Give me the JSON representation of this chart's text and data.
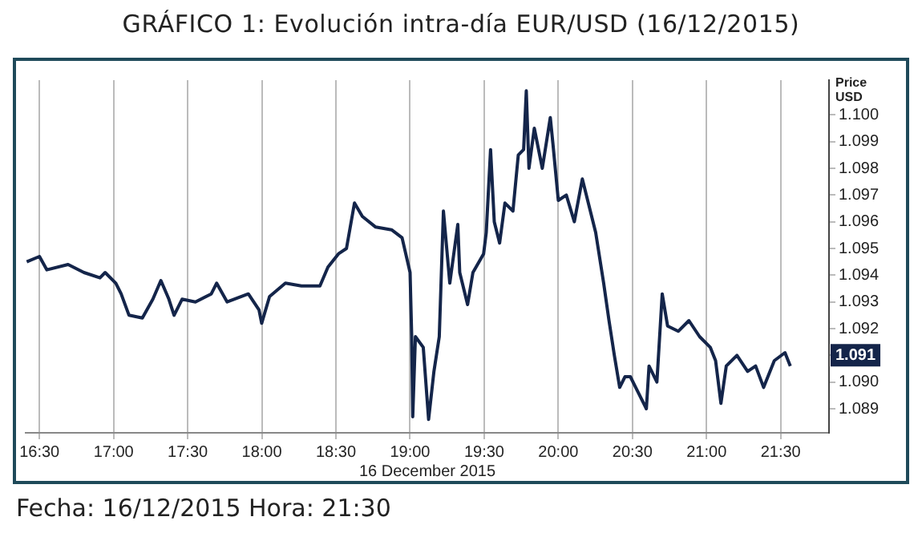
{
  "chart_data": {
    "type": "line",
    "title": "GRÁFICO 1: Evolución intra-día EUR/USD (16/12/2015)",
    "xlabel": "16 December 2015",
    "ylabel": "Price USD",
    "x": [
      16.414,
      16.5,
      16.55,
      16.693,
      16.8,
      16.908,
      16.943,
      17.015,
      17.051,
      17.104,
      17.194,
      17.265,
      17.319,
      17.373,
      17.408,
      17.462,
      17.552,
      17.659,
      17.695,
      17.766,
      17.909,
      17.981,
      17.999,
      18.052,
      18.159,
      18.267,
      18.392,
      18.446,
      18.517,
      18.571,
      18.625,
      18.678,
      18.768,
      18.875,
      18.946,
      19.0,
      19.011,
      19.018,
      19.036,
      19.089,
      19.125,
      19.161,
      19.197,
      19.225,
      19.268,
      19.322,
      19.335,
      19.388,
      19.424,
      19.496,
      19.514,
      19.543,
      19.568,
      19.604,
      19.64,
      19.694,
      19.73,
      19.766,
      19.784,
      19.802,
      19.838,
      19.892,
      19.946,
      19.964,
      20.0,
      20.054,
      20.108,
      20.162,
      20.198,
      20.252,
      20.306,
      20.342,
      20.378,
      20.414,
      20.45,
      20.486,
      20.522,
      20.594,
      20.612,
      20.665,
      20.701,
      20.737,
      20.809,
      20.881,
      20.953,
      21.025,
      21.061,
      21.097,
      21.133,
      21.205,
      21.277,
      21.331,
      21.385,
      21.457,
      21.529,
      21.565
    ],
    "series": [
      {
        "color": "#14254a",
        "values": [
          1.0945,
          1.0947,
          1.0942,
          1.0944,
          1.0941,
          1.0939,
          1.0941,
          1.0937,
          1.0933,
          1.0925,
          1.0924,
          1.0931,
          1.0938,
          1.0931,
          1.0925,
          1.0931,
          1.093,
          1.0933,
          1.0937,
          1.093,
          1.0933,
          1.0927,
          1.0922,
          1.0932,
          1.0937,
          1.0936,
          1.0936,
          1.0943,
          1.0948,
          1.095,
          1.0967,
          1.0962,
          1.0958,
          1.0957,
          1.0954,
          1.0941,
          1.0917,
          1.0887,
          1.0917,
          1.0913,
          1.0886,
          1.0904,
          1.0917,
          1.0964,
          1.0937,
          1.0959,
          1.0941,
          1.0929,
          1.0941,
          1.0948,
          1.0956,
          1.0987,
          1.096,
          1.0952,
          1.0967,
          1.0964,
          1.0985,
          1.0987,
          1.1009,
          1.098,
          1.0995,
          1.098,
          1.0999,
          1.0989,
          1.0968,
          1.097,
          1.096,
          1.0976,
          1.0968,
          1.0956,
          1.0937,
          1.0923,
          1.091,
          1.0898,
          1.0902,
          1.0902,
          1.0898,
          1.089,
          1.0906,
          1.09,
          1.0933,
          1.0921,
          1.0919,
          1.0923,
          1.0917,
          1.0913,
          1.0908,
          1.0892,
          1.0906,
          1.091,
          1.0904,
          1.0906,
          1.0898,
          1.0908,
          1.0911,
          1.0906
        ]
      }
    ],
    "xlim": [
      16.407,
      21.826
    ],
    "xticks": [
      {
        "value": 16.5,
        "label": "16:30"
      },
      {
        "value": 17,
        "label": "17:00"
      },
      {
        "value": 17.5,
        "label": "17:30"
      },
      {
        "value": 18,
        "label": "18:00"
      },
      {
        "value": 18.5,
        "label": "18:30"
      },
      {
        "value": 19,
        "label": "19:00"
      },
      {
        "value": 19.5,
        "label": "19:30"
      },
      {
        "value": 20,
        "label": "20:00"
      },
      {
        "value": 20.5,
        "label": "20:30"
      },
      {
        "value": 21,
        "label": "21:00"
      },
      {
        "value": 21.5,
        "label": "21:30"
      }
    ],
    "ylim": [
      1.0881,
      1.1013
    ],
    "yticks": [
      {
        "value": 1.089,
        "label": "1.089"
      },
      {
        "value": 1.09,
        "label": "1.090"
      },
      {
        "value": 1.091,
        "label": null
      },
      {
        "value": 1.092,
        "label": "1.092"
      },
      {
        "value": 1.093,
        "label": "1.093"
      },
      {
        "value": 1.094,
        "label": "1.094"
      },
      {
        "value": 1.095,
        "label": "1.095"
      },
      {
        "value": 1.096,
        "label": "1.096"
      },
      {
        "value": 1.097,
        "label": "1.097"
      },
      {
        "value": 1.098,
        "label": "1.098"
      },
      {
        "value": 1.099,
        "label": "1.099"
      },
      {
        "value": 1.1,
        "label": "1.100"
      }
    ],
    "grid": "x",
    "legend": false,
    "marker": "none",
    "line_style": "solid",
    "annotations": [
      {
        "text": "1.091",
        "y": 1.091
      },
      "Fecha: 16/12/2015 Hora: 21:30"
    ]
  }
}
